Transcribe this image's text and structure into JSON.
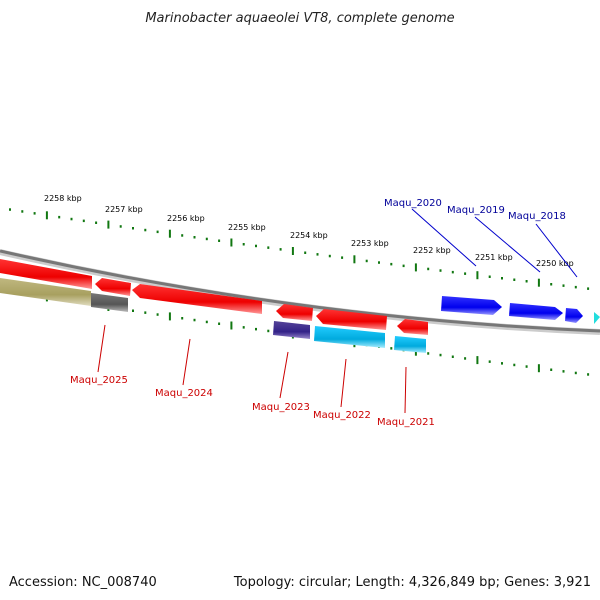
{
  "title": "Marinobacter aquaeolei VT8, complete genome",
  "footer": {
    "accession": "Accession: NC_008740",
    "topology": "Topology: circular; Length: 4,326,849 bp; Genes: 3,921"
  },
  "colors": {
    "forward_gene": "#0000ee",
    "reverse_gene": "#ee0000",
    "backbone": "#777777",
    "ticks": "#117711",
    "top_label": "#000099",
    "bottom_label": "#cc0000",
    "cds_cyan": "#00aadd",
    "cds_purple": "#332288",
    "cds_gray": "#555555",
    "cds_olive": "#a8a060"
  },
  "tick_labels": [
    "2258 kbp",
    "2257 kbp",
    "2256 kbp",
    "2255 kbp",
    "2254 kbp",
    "2253 kbp",
    "2252 kbp",
    "2251 kbp",
    "2250 kbp"
  ],
  "genes_top": [
    {
      "label": "Maqu_2020"
    },
    {
      "label": "Maqu_2019"
    },
    {
      "label": "Maqu_2018"
    }
  ],
  "genes_bottom": [
    {
      "label": "Maqu_2025"
    },
    {
      "label": "Maqu_2024"
    },
    {
      "label": "Maqu_2023"
    },
    {
      "label": "Maqu_2022"
    },
    {
      "label": "Maqu_2021"
    }
  ]
}
